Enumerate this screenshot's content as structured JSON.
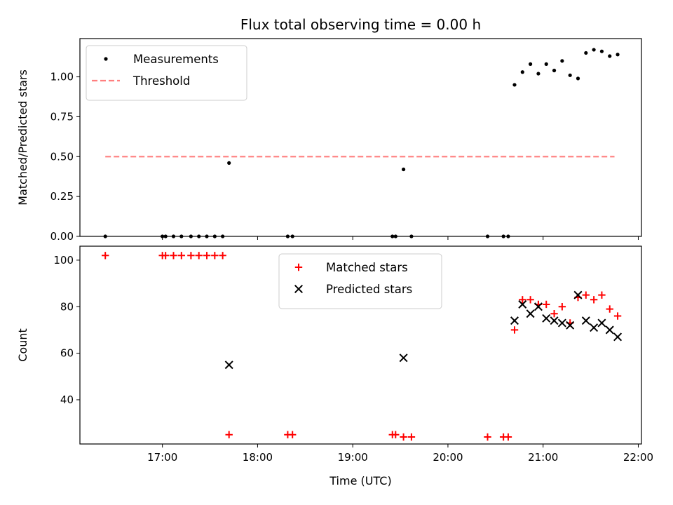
{
  "chart_data": [
    {
      "type": "scatter",
      "title": "Flux total observing time = 0.00 h",
      "ylabel": "Matched/Predicted stars",
      "xlabel": "",
      "xlim": [
        "16:08",
        "22:02"
      ],
      "ylim": [
        0,
        1.24
      ],
      "yticks": [
        0,
        0.25,
        0.5,
        0.75,
        1.0
      ],
      "ytick_labels": [
        "0.00",
        "0.25",
        "0.50",
        "0.75",
        "1.00"
      ],
      "xticks": [
        "17:00",
        "18:00",
        "19:00",
        "20:00",
        "21:00",
        "22:00"
      ],
      "legend_position": "top-left",
      "grid": false,
      "series": [
        {
          "name": "Measurements",
          "marker": "dot",
          "color": "#000000",
          "points": [
            {
              "x": "16:24",
              "y": 0.0
            },
            {
              "x": "17:00",
              "y": 0.0
            },
            {
              "x": "17:02",
              "y": 0.0
            },
            {
              "x": "17:07",
              "y": 0.0
            },
            {
              "x": "17:12",
              "y": 0.0
            },
            {
              "x": "17:18",
              "y": 0.0
            },
            {
              "x": "17:23",
              "y": 0.0
            },
            {
              "x": "17:28",
              "y": 0.0
            },
            {
              "x": "17:33",
              "y": 0.0
            },
            {
              "x": "17:38",
              "y": 0.0
            },
            {
              "x": "17:42",
              "y": 0.46
            },
            {
              "x": "18:19",
              "y": 0.0
            },
            {
              "x": "18:22",
              "y": 0.0
            },
            {
              "x": "19:25",
              "y": 0.0
            },
            {
              "x": "19:27",
              "y": 0.0
            },
            {
              "x": "19:32",
              "y": 0.42
            },
            {
              "x": "19:37",
              "y": 0.0
            },
            {
              "x": "20:25",
              "y": 0.0
            },
            {
              "x": "20:35",
              "y": 0.0
            },
            {
              "x": "20:38",
              "y": 0.0
            },
            {
              "x": "20:42",
              "y": 0.95
            },
            {
              "x": "20:47",
              "y": 1.03
            },
            {
              "x": "20:52",
              "y": 1.08
            },
            {
              "x": "20:57",
              "y": 1.02
            },
            {
              "x": "21:02",
              "y": 1.08
            },
            {
              "x": "21:07",
              "y": 1.04
            },
            {
              "x": "21:12",
              "y": 1.1
            },
            {
              "x": "21:17",
              "y": 1.01
            },
            {
              "x": "21:22",
              "y": 0.99
            },
            {
              "x": "21:27",
              "y": 1.15
            },
            {
              "x": "21:32",
              "y": 1.17
            },
            {
              "x": "21:37",
              "y": 1.16
            },
            {
              "x": "21:42",
              "y": 1.13
            },
            {
              "x": "21:47",
              "y": 1.14
            }
          ]
        },
        {
          "name": "Threshold",
          "marker": "dashed-line",
          "color": "#ff7f7f",
          "points": [
            {
              "x": "16:24",
              "y": 0.5
            },
            {
              "x": "21:45",
              "y": 0.5
            }
          ]
        }
      ]
    },
    {
      "type": "scatter",
      "title": "",
      "ylabel": "Count",
      "xlabel": "Time (UTC)",
      "xlim": [
        "16:08",
        "22:02"
      ],
      "ylim": [
        21,
        106
      ],
      "yticks": [
        40,
        60,
        80,
        100
      ],
      "ytick_labels": [
        "40",
        "60",
        "80",
        "100"
      ],
      "xticks": [
        "17:00",
        "18:00",
        "19:00",
        "20:00",
        "21:00",
        "22:00"
      ],
      "legend_position": "upper-center",
      "grid": false,
      "series": [
        {
          "name": "Matched stars",
          "marker": "plus",
          "color": "#ff0000",
          "points": [
            {
              "x": "16:24",
              "y": 102
            },
            {
              "x": "17:00",
              "y": 102
            },
            {
              "x": "17:02",
              "y": 102
            },
            {
              "x": "17:07",
              "y": 102
            },
            {
              "x": "17:12",
              "y": 102
            },
            {
              "x": "17:18",
              "y": 102
            },
            {
              "x": "17:23",
              "y": 102
            },
            {
              "x": "17:28",
              "y": 102
            },
            {
              "x": "17:33",
              "y": 102
            },
            {
              "x": "17:38",
              "y": 102
            },
            {
              "x": "17:42",
              "y": 25
            },
            {
              "x": "18:19",
              "y": 25
            },
            {
              "x": "18:22",
              "y": 25
            },
            {
              "x": "19:25",
              "y": 25
            },
            {
              "x": "19:27",
              "y": 25
            },
            {
              "x": "19:32",
              "y": 24
            },
            {
              "x": "19:37",
              "y": 24
            },
            {
              "x": "20:25",
              "y": 24
            },
            {
              "x": "20:35",
              "y": 24
            },
            {
              "x": "20:38",
              "y": 24
            },
            {
              "x": "20:42",
              "y": 70
            },
            {
              "x": "20:47",
              "y": 83
            },
            {
              "x": "20:52",
              "y": 83
            },
            {
              "x": "20:57",
              "y": 81
            },
            {
              "x": "21:02",
              "y": 81
            },
            {
              "x": "21:07",
              "y": 77
            },
            {
              "x": "21:12",
              "y": 80
            },
            {
              "x": "21:17",
              "y": 73
            },
            {
              "x": "21:22",
              "y": 84
            },
            {
              "x": "21:27",
              "y": 85
            },
            {
              "x": "21:32",
              "y": 83
            },
            {
              "x": "21:37",
              "y": 85
            },
            {
              "x": "21:42",
              "y": 79
            },
            {
              "x": "21:47",
              "y": 76
            }
          ]
        },
        {
          "name": "Predicted stars",
          "marker": "x",
          "color": "#000000",
          "points": [
            {
              "x": "17:42",
              "y": 55
            },
            {
              "x": "19:32",
              "y": 58
            },
            {
              "x": "20:42",
              "y": 74
            },
            {
              "x": "20:47",
              "y": 81
            },
            {
              "x": "20:52",
              "y": 77
            },
            {
              "x": "20:57",
              "y": 80
            },
            {
              "x": "21:02",
              "y": 75
            },
            {
              "x": "21:07",
              "y": 74
            },
            {
              "x": "21:12",
              "y": 73
            },
            {
              "x": "21:17",
              "y": 72
            },
            {
              "x": "21:22",
              "y": 85
            },
            {
              "x": "21:27",
              "y": 74
            },
            {
              "x": "21:32",
              "y": 71
            },
            {
              "x": "21:37",
              "y": 73
            },
            {
              "x": "21:42",
              "y": 70
            },
            {
              "x": "21:47",
              "y": 67
            }
          ]
        }
      ]
    }
  ]
}
